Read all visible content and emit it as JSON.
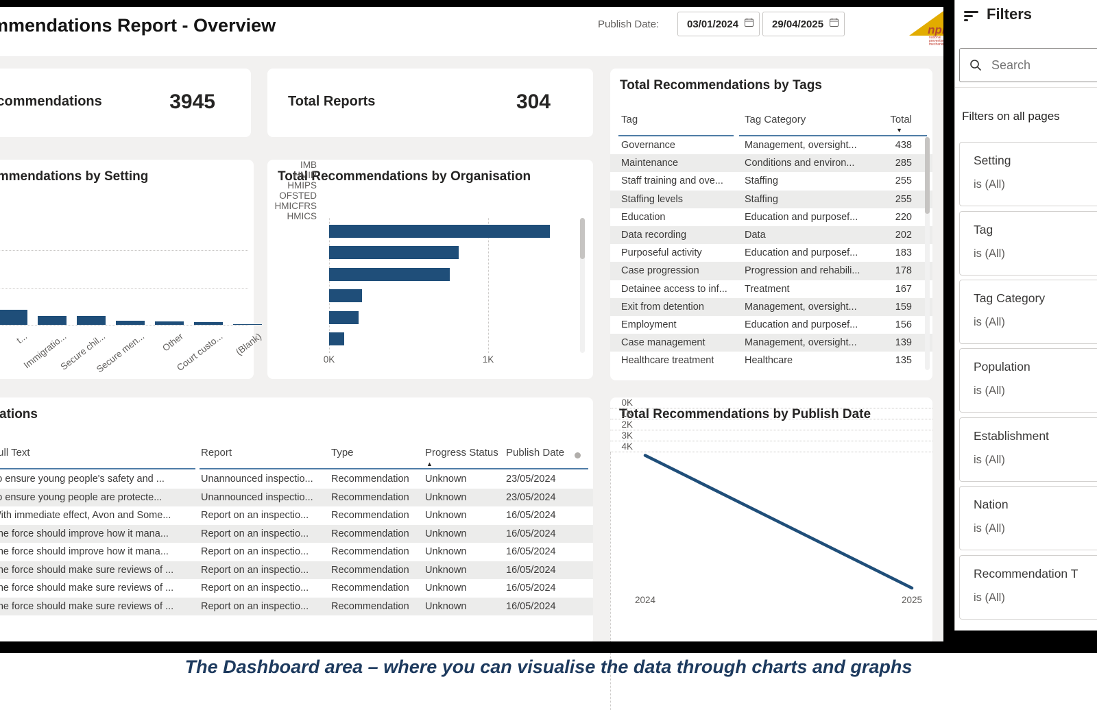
{
  "dashboard": {
    "title": "Recommendations Report - Overview",
    "publish_date": {
      "label": "Publish Date:",
      "from": "03/01/2024",
      "to": "29/04/2025"
    },
    "logo": {
      "text": "npm",
      "sub": "national preventive mechanism"
    },
    "kpi_cards": [
      {
        "label": "Total Recommendations",
        "value": "3945"
      },
      {
        "label": "Total Reports",
        "value": "304"
      }
    ]
  },
  "tags_table": {
    "title": "Total Recommendations by Tags",
    "columns": [
      "Tag",
      "Tag Category",
      "Total"
    ],
    "sorted_by": "Total",
    "sort_direction": "descending",
    "rows": [
      [
        "Governance",
        "Management, oversight...",
        "438"
      ],
      [
        "Maintenance",
        "Conditions and environ...",
        "285"
      ],
      [
        "Staff training and ove...",
        "Staffing",
        "255"
      ],
      [
        "Staffing levels",
        "Staffing",
        "255"
      ],
      [
        "Education",
        "Education and purposef...",
        "220"
      ],
      [
        "Data recording",
        "Data",
        "202"
      ],
      [
        "Purposeful activity",
        "Education and purposef...",
        "183"
      ],
      [
        "Case progression",
        "Progression and rehabili...",
        "178"
      ],
      [
        "Detainee access to inf...",
        "Treatment",
        "167"
      ],
      [
        "Exit from detention",
        "Management, oversight...",
        "159"
      ],
      [
        "Employment",
        "Education and purposef...",
        "156"
      ],
      [
        "Case management",
        "Management, oversight...",
        "139"
      ],
      [
        "Healthcare treatment",
        "Healthcare",
        "135"
      ]
    ]
  },
  "recommendations_table": {
    "title": "Recommendations",
    "columns": [
      "Full Text",
      "Report",
      "Type",
      "Progress Status",
      "Publish Date"
    ],
    "sorted_by": "Progress Status",
    "sort_direction": "ascending",
    "rows": [
      [
        "To ensure young people's safety and ...",
        "Unannounced inspectio...",
        "Recommendation",
        "Unknown",
        "23/05/2024"
      ],
      [
        "To ensure young people are protecte...",
        "Unannounced inspectio...",
        "Recommendation",
        "Unknown",
        "23/05/2024"
      ],
      [
        "With immediate effect, Avon and Some...",
        "Report on an inspectio...",
        "Recommendation",
        "Unknown",
        "16/05/2024"
      ],
      [
        "The force should improve how it mana...",
        "Report on an inspectio...",
        "Recommendation",
        "Unknown",
        "16/05/2024"
      ],
      [
        "The force should improve how it mana...",
        "Report on an inspectio...",
        "Recommendation",
        "Unknown",
        "16/05/2024"
      ],
      [
        "The force should make sure reviews of ...",
        "Report on an inspectio...",
        "Recommendation",
        "Unknown",
        "16/05/2024"
      ],
      [
        "The force should make sure reviews of ...",
        "Report on an inspectio...",
        "Recommendation",
        "Unknown",
        "16/05/2024"
      ],
      [
        "The force should make sure reviews of ...",
        "Report on an inspectio...",
        "Recommendation",
        "Unknown",
        "16/05/2024"
      ]
    ]
  },
  "chart_data": [
    {
      "id": "setting",
      "type": "bar",
      "orientation": "vertical",
      "title": "Total Recommendations by Setting",
      "note": "left portion of chart clipped at screenshot edge; values estimated from bar heights",
      "categories": [
        "t...",
        "Immigratio...",
        "Secure chil...",
        "Secure men...",
        "Other",
        "Court custo...",
        "(Blank)"
      ],
      "values": [
        420,
        250,
        250,
        110,
        90,
        70,
        20
      ],
      "grid": "dotted horizontal"
    },
    {
      "id": "organisation",
      "type": "bar",
      "orientation": "horizontal",
      "title": "Total Recommendations by Organisation",
      "categories": [
        "IMB",
        "HMIP",
        "HMIPS",
        "OFSTED",
        "HMICFRS",
        "HMICS"
      ],
      "values": [
        1390,
        815,
        760,
        205,
        185,
        95
      ],
      "xticks": [
        "0K",
        "1K"
      ],
      "xlim": [
        0,
        1600
      ],
      "grid": "dotted vertical"
    },
    {
      "id": "publish_date",
      "type": "line",
      "title": "Total Recommendations by Publish Date",
      "x": [
        "2024",
        "2025"
      ],
      "values": [
        3950,
        60
      ],
      "xticks": [
        "2024",
        "2025"
      ],
      "yticks": [
        "0K",
        "1K",
        "2K",
        "3K",
        "4K"
      ],
      "ylim": [
        0,
        4000
      ],
      "grid": "dotted"
    }
  ],
  "filters_panel": {
    "title": "Filters",
    "search_placeholder": "Search",
    "section_label": "Filters on all pages",
    "filters": [
      {
        "name": "Setting",
        "value": "is (All)"
      },
      {
        "name": "Tag",
        "value": "is (All)"
      },
      {
        "name": "Tag Category",
        "value": "is (All)"
      },
      {
        "name": "Population",
        "value": "is (All)"
      },
      {
        "name": "Establishment",
        "value": "is (All)"
      },
      {
        "name": "Nation",
        "value": "is (All)"
      },
      {
        "name": "Recommendation T",
        "value": "is (All)"
      }
    ]
  },
  "caption": "The Dashboard area – where you can visualise the data through charts and graphs",
  "colors": {
    "accent_bar": "#1f4e79",
    "header_underline": "#4e7ca6",
    "row_stripe": "#ececeb",
    "canvas_gray": "#f2f1f0",
    "caption_text": "#1d3a5e",
    "logo_yellow": "#e2ac00",
    "frame_black": "#000000"
  }
}
